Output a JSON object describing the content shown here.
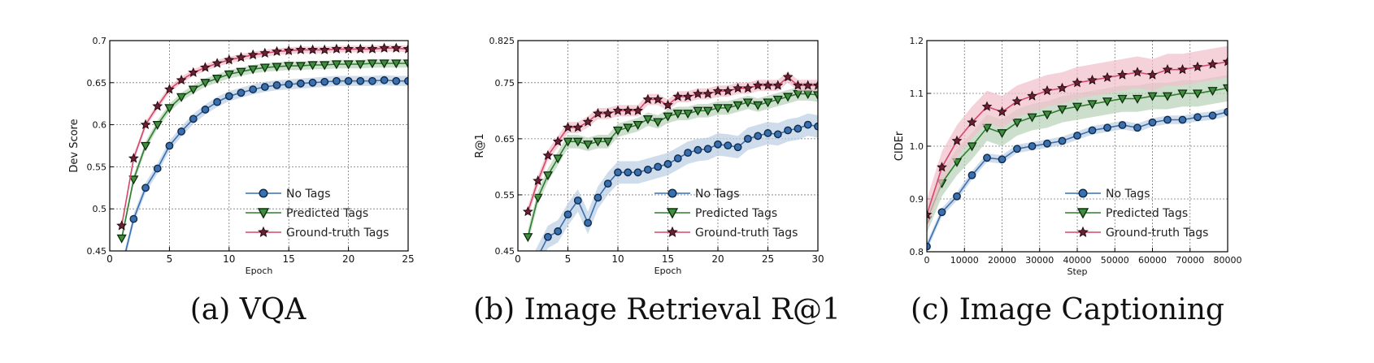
{
  "chart_data": [
    {
      "type": "line",
      "caption": "(a) VQA",
      "xlabel": "Epoch",
      "ylabel": "Dev Score",
      "xlim": [
        0,
        25
      ],
      "ylim": [
        0.45,
        0.7
      ],
      "xticks": [
        "0",
        "5",
        "10",
        "15",
        "20",
        "25"
      ],
      "yticks": [
        "0.45",
        "0.5",
        "0.55",
        "0.6",
        "0.65",
        "0.7"
      ],
      "grid": true,
      "legend_position": "lower-right",
      "x": [
        1,
        2,
        3,
        4,
        5,
        6,
        7,
        8,
        9,
        10,
        11,
        12,
        13,
        14,
        15,
        16,
        17,
        18,
        19,
        20,
        21,
        22,
        23,
        24,
        25
      ],
      "series": [
        {
          "name": "No Tags",
          "color": "#3a6fb0",
          "marker": "circle",
          "band": 0.006,
          "values": [
            0.43,
            0.488,
            0.525,
            0.548,
            0.575,
            0.592,
            0.607,
            0.618,
            0.627,
            0.634,
            0.638,
            0.642,
            0.645,
            0.647,
            0.648,
            0.649,
            0.65,
            0.651,
            0.652,
            0.652,
            0.652,
            0.652,
            0.653,
            0.652,
            0.652
          ]
        },
        {
          "name": "Predicted Tags",
          "color": "#2e7d2e",
          "marker": "triangle",
          "band": 0.005,
          "values": [
            0.465,
            0.535,
            0.575,
            0.6,
            0.62,
            0.633,
            0.642,
            0.65,
            0.655,
            0.66,
            0.663,
            0.666,
            0.668,
            0.669,
            0.67,
            0.67,
            0.671,
            0.671,
            0.672,
            0.672,
            0.672,
            0.673,
            0.673,
            0.673,
            0.673
          ]
        },
        {
          "name": "Ground-truth Tags",
          "color": "#d7476a",
          "marker": "star",
          "band": 0.004,
          "values": [
            0.48,
            0.56,
            0.6,
            0.622,
            0.642,
            0.653,
            0.662,
            0.668,
            0.673,
            0.677,
            0.68,
            0.683,
            0.685,
            0.687,
            0.688,
            0.689,
            0.689,
            0.689,
            0.69,
            0.69,
            0.69,
            0.69,
            0.691,
            0.691,
            0.69
          ]
        }
      ]
    },
    {
      "type": "line",
      "caption": "(b) Image Retrieval R@1",
      "xlabel": "Epoch",
      "ylabel": "R@1",
      "xlim": [
        0,
        30
      ],
      "ylim": [
        0.45,
        0.825
      ],
      "xticks": [
        "0",
        "5",
        "10",
        "15",
        "20",
        "25",
        "30"
      ],
      "yticks": [
        "0.45",
        "0.55",
        "0.65",
        "0.75",
        "0.825"
      ],
      "ytick_values": [
        0.45,
        0.55,
        0.65,
        0.75,
        0.825
      ],
      "grid": true,
      "legend_position": "lower-right",
      "x": [
        1,
        2,
        3,
        4,
        5,
        6,
        7,
        8,
        9,
        10,
        11,
        12,
        13,
        14,
        15,
        16,
        17,
        18,
        19,
        20,
        21,
        22,
        23,
        24,
        25,
        26,
        27,
        28,
        29,
        30
      ],
      "series": [
        {
          "name": "No Tags",
          "color": "#3a6fb0",
          "marker": "circle",
          "band": 0.02,
          "values": [
            0.405,
            0.44,
            0.475,
            0.485,
            0.515,
            0.54,
            0.5,
            0.545,
            0.57,
            0.59,
            0.59,
            0.59,
            0.595,
            0.6,
            0.605,
            0.615,
            0.625,
            0.63,
            0.632,
            0.64,
            0.638,
            0.635,
            0.65,
            0.655,
            0.66,
            0.658,
            0.665,
            0.668,
            0.675,
            0.672
          ]
        },
        {
          "name": "Predicted Tags",
          "color": "#2e7d2e",
          "marker": "triangle",
          "band": 0.012,
          "values": [
            0.475,
            0.545,
            0.585,
            0.615,
            0.645,
            0.645,
            0.64,
            0.645,
            0.645,
            0.665,
            0.67,
            0.675,
            0.685,
            0.68,
            0.69,
            0.695,
            0.695,
            0.7,
            0.7,
            0.705,
            0.705,
            0.71,
            0.715,
            0.71,
            0.715,
            0.72,
            0.725,
            0.73,
            0.73,
            0.728
          ]
        },
        {
          "name": "Ground-truth Tags",
          "color": "#d7476a",
          "marker": "star",
          "band": 0.01,
          "values": [
            0.52,
            0.575,
            0.62,
            0.645,
            0.67,
            0.67,
            0.68,
            0.695,
            0.695,
            0.7,
            0.7,
            0.7,
            0.72,
            0.72,
            0.71,
            0.725,
            0.725,
            0.73,
            0.73,
            0.735,
            0.735,
            0.74,
            0.74,
            0.745,
            0.745,
            0.745,
            0.76,
            0.745,
            0.745,
            0.745
          ]
        }
      ]
    },
    {
      "type": "line",
      "caption": "(c) Image Captioning",
      "xlabel": "Step",
      "ylabel": "CIDEr",
      "xlim": [
        0,
        80000
      ],
      "ylim": [
        0.8,
        1.2
      ],
      "xticks": [
        "0",
        "10000",
        "20000",
        "30000",
        "40000",
        "50000",
        "60000",
        "70000",
        "80000"
      ],
      "yticks": [
        "0.8",
        "0.9",
        "1.0",
        "1.1",
        "1.2"
      ],
      "grid": true,
      "legend_position": "lower-right",
      "x": [
        0,
        4000,
        8000,
        12000,
        16000,
        20000,
        24000,
        28000,
        32000,
        36000,
        40000,
        44000,
        48000,
        52000,
        56000,
        60000,
        64000,
        68000,
        72000,
        76000,
        80000
      ],
      "series": [
        {
          "name": "No Tags",
          "color": "#3a6fb0",
          "marker": "circle",
          "band": 0.008,
          "values": [
            0.81,
            0.875,
            0.905,
            0.945,
            0.978,
            0.975,
            0.995,
            1.0,
            1.005,
            1.01,
            1.02,
            1.03,
            1.035,
            1.04,
            1.035,
            1.045,
            1.05,
            1.05,
            1.055,
            1.058,
            1.065
          ]
        },
        {
          "name": "Predicted Tags",
          "color": "#2e7d2e",
          "marker": "triangle",
          "band": 0.025,
          "values": [
            0.86,
            0.93,
            0.97,
            1.0,
            1.035,
            1.025,
            1.045,
            1.055,
            1.06,
            1.07,
            1.075,
            1.08,
            1.085,
            1.09,
            1.09,
            1.095,
            1.095,
            1.1,
            1.1,
            1.105,
            1.11
          ]
        },
        {
          "name": "Ground-truth Tags",
          "color": "#d7476a",
          "marker": "star",
          "band": 0.03,
          "values": [
            0.87,
            0.96,
            1.01,
            1.045,
            1.075,
            1.065,
            1.085,
            1.095,
            1.105,
            1.11,
            1.12,
            1.125,
            1.13,
            1.135,
            1.14,
            1.135,
            1.145,
            1.145,
            1.15,
            1.155,
            1.16
          ]
        }
      ]
    }
  ]
}
